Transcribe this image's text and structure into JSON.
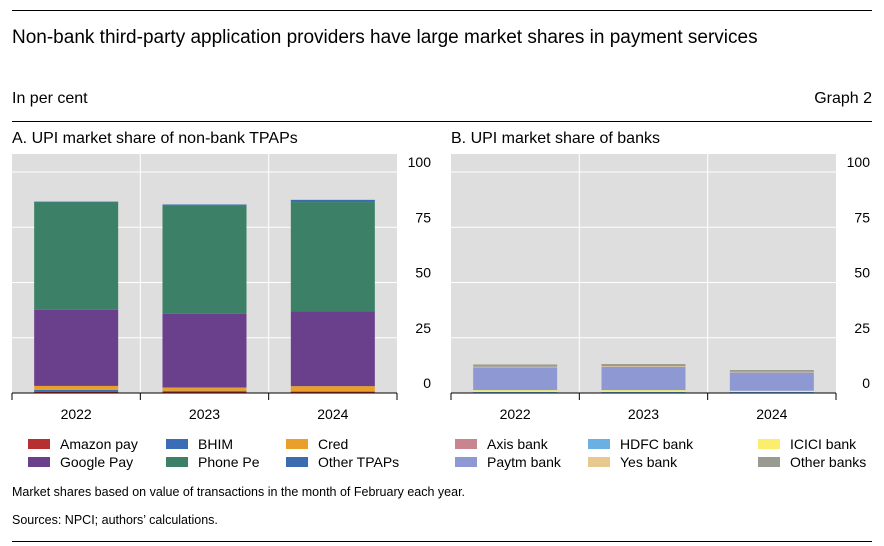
{
  "title": "Non-bank third-party application providers have large market shares in payment services",
  "unit": "In per cent",
  "graph_number": "Graph 2",
  "footnote": "Market shares based on value of transactions in the month of February each year.",
  "sources": "Sources: NPCI; authors’ calculations.",
  "chart_data": [
    {
      "type": "bar",
      "stacked": true,
      "title": "A. UPI market share of non-bank TPAPs",
      "categories": [
        "2022",
        "2023",
        "2024"
      ],
      "ylim": [
        0,
        100
      ],
      "yticks": [
        0,
        25,
        50,
        75,
        100
      ],
      "grid": true,
      "legend_position": "bottom",
      "series": [
        {
          "name": "Amazon pay",
          "color": "#b5302f",
          "values": [
            0.8,
            0.6,
            0.5
          ]
        },
        {
          "name": "BHIM",
          "color": "#3a6db5",
          "values": [
            0.6,
            0.4,
            0.3
          ]
        },
        {
          "name": "Cred",
          "color": "#e8a02a",
          "values": [
            1.8,
            1.5,
            2.3
          ]
        },
        {
          "name": "Google Pay",
          "color": "#6a3f8c",
          "values": [
            34.5,
            33.4,
            33.8
          ]
        },
        {
          "name": "Phone Pe",
          "color": "#3c8067",
          "values": [
            48.7,
            48.9,
            49.5
          ]
        },
        {
          "name": "Other TPAPs",
          "color": "#3b6cb0",
          "values": [
            0.2,
            0.5,
            1.0
          ]
        }
      ]
    },
    {
      "type": "bar",
      "stacked": true,
      "title": "B. UPI market share of banks",
      "categories": [
        "2022",
        "2023",
        "2024"
      ],
      "ylim": [
        0,
        100
      ],
      "yticks": [
        0,
        25,
        50,
        75,
        100
      ],
      "grid": true,
      "legend_position": "bottom",
      "series": [
        {
          "name": "Axis bank",
          "color": "#c9858f",
          "values": [
            0.3,
            0.3,
            0.3
          ]
        },
        {
          "name": "HDFC bank",
          "color": "#6bb0e3",
          "values": [
            0.2,
            0.2,
            0.2
          ]
        },
        {
          "name": "ICICI bank",
          "color": "#fbee6f",
          "values": [
            0.8,
            0.8,
            0.5
          ]
        },
        {
          "name": "Paytm bank",
          "color": "#8e98d2",
          "values": [
            10.3,
            10.5,
            8.3
          ]
        },
        {
          "name": "Yes bank",
          "color": "#e7c98f",
          "values": [
            0.3,
            0.3,
            0.3
          ]
        },
        {
          "name": "Other banks",
          "color": "#999b93",
          "values": [
            1.0,
            1.0,
            0.8
          ]
        }
      ]
    }
  ],
  "legends": [
    {
      "items": [
        {
          "label": "Amazon pay",
          "color": "#b5302f"
        },
        {
          "label": "BHIM",
          "color": "#3a6db5"
        },
        {
          "label": "Cred",
          "color": "#e8a02a"
        },
        {
          "label": "Google Pay",
          "color": "#6a3f8c"
        },
        {
          "label": "Phone Pe",
          "color": "#3c8067"
        },
        {
          "label": "Other TPAPs",
          "color": "#3b6cb0"
        }
      ]
    },
    {
      "items": [
        {
          "label": "Axis bank",
          "color": "#c9858f"
        },
        {
          "label": "HDFC bank",
          "color": "#6bb0e3"
        },
        {
          "label": "ICICI bank",
          "color": "#fbee6f"
        },
        {
          "label": "Paytm bank",
          "color": "#8e98d2"
        },
        {
          "label": "Yes bank",
          "color": "#e7c98f"
        },
        {
          "label": "Other banks",
          "color": "#999b93"
        }
      ]
    }
  ]
}
